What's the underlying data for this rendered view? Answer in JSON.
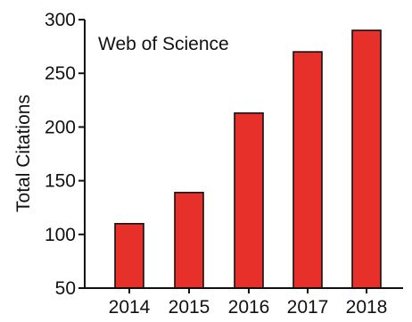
{
  "chart_data": {
    "type": "bar",
    "title": "",
    "annotation": "Web of Science",
    "xlabel": "",
    "ylabel": "Total Citations",
    "categories": [
      "2014",
      "2015",
      "2016",
      "2017",
      "2018"
    ],
    "values": [
      110,
      139,
      213,
      270,
      290
    ],
    "ylim": [
      50,
      300
    ],
    "yticks": [
      50,
      100,
      150,
      200,
      250,
      300
    ],
    "grid": false,
    "legend": "none",
    "bar_color": "#e8302a",
    "bar_edge_color": "#111111"
  }
}
